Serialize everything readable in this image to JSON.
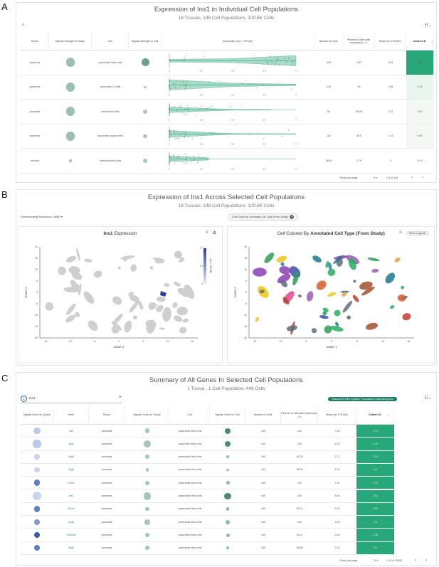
{
  "panelA": {
    "label": "A",
    "title": "Expression of Ins1 in Individual Cell Populations",
    "subtitle": "18 Tissues, 148 Cell Populations, 100.6K Cells",
    "headers": [
      "Tissue",
      "Signals Strength to Tissue",
      "Cell",
      "Signals Strength to Cell",
      "Expression: ln(1 + CP10K)",
      "Number of Cells",
      "Percent of cells with expression > 0",
      "Mean ln(1+CP10K)",
      "Cohen's D"
    ],
    "sort_arrow": "↓",
    "axis_ticks": [
      "0",
      "1.9",
      "3.9",
      "5.8",
      "7.7"
    ],
    "rows": [
      {
        "tissue": "pancreas",
        "cell": "pancreatic beta cells",
        "n": "449",
        "pct": "100",
        "mean": "6.54",
        "d": "2.52",
        "tissue_sig": 0.8,
        "cell_sig": 0.75,
        "violin_lo": 0.0,
        "violin_hi": 1.0,
        "dens": [
          0.25,
          0.35,
          0.9
        ],
        "color": "#27a77a",
        "pct_val": 100
      },
      {
        "tissue": "pancreas",
        "cell": "pancreatic D cells",
        "n": "140",
        "pct": "95",
        "mean": "0.98",
        "d": "0.22",
        "tissue_sig": 0.8,
        "cell_sig": 0.12,
        "violin_lo": 0.0,
        "violin_hi": 1.0,
        "dens": [
          0.9,
          0.3,
          0.1
        ],
        "color": "#e8f4ee",
        "pct_val": 95
      },
      {
        "tissue": "pancreas",
        "cell": "endothelial cells",
        "n": "66",
        "pct": "56.06",
        "mean": "0.21",
        "d": "0.07",
        "tissue_sig": 0.8,
        "cell_sig": 0.3,
        "violin_lo": 0.0,
        "violin_hi": 0.8,
        "dens": [
          0.5,
          0.05,
          0.02
        ],
        "color": "#f3f8f5",
        "pct_val": 56.06
      },
      {
        "tissue": "pancreas",
        "cell": "pancreatic acinar cells",
        "n": "152",
        "pct": "48.9",
        "mean": "0.13",
        "d": "0.06",
        "tissue_sig": 0.8,
        "cell_sig": 0.28,
        "violin_lo": 0.0,
        "violin_hi": 1.0,
        "dens": [
          0.6,
          0.05,
          0.02
        ],
        "color": "#f3f8f5",
        "pct_val": 48.9
      },
      {
        "tissue": "trachea",
        "cell": "mesenchymal cells",
        "n": "5678",
        "pct": "2.79",
        "mean": "0",
        "d": "-0.02",
        "tissue_sig": 0.12,
        "cell_sig": 0.3,
        "violin_lo": 0.0,
        "violin_hi": 0.3,
        "dens": [
          0.5,
          0.03,
          0.01
        ],
        "color": "#ffffff",
        "pct_val": 2.79
      }
    ],
    "footer": {
      "rows_label": "Rows per page:",
      "rows_value": "5",
      "range": "1-5 of 148"
    }
  },
  "panelB": {
    "label": "B",
    "title": "Expression of Ins1 Across Selected Cell Populations",
    "subtitle": "18 Tissues, 148 Cell Populations, 100.6K Cells",
    "dimred_label": "Dimensionality Reduction: UMAP",
    "color_chip": "Color Cells By: Annotated Cell Type (From Study)",
    "left_plot_title_gene": "Ins1",
    "left_plot_title_rest": " Expression",
    "right_plot_title_pre": "Cell Colored By ",
    "right_plot_title_bold": "Annotated Cell Type (From Study)",
    "show_legends": "Show Legends",
    "xlabel": "UMAP-1",
    "ylabel": "UMAP-2",
    "colorbar_label": "ln(1 + CP10K)",
    "colorbar_ticks": [
      "7.7",
      "3.9",
      "0"
    ],
    "x_ticks": [
      "-15",
      "-10",
      "-5",
      "0",
      "5",
      "10",
      "15"
    ],
    "y_ticks": [
      "20",
      "15",
      "10",
      "5",
      "0",
      "-5",
      "-10",
      "-15",
      "-20"
    ]
  },
  "panelC": {
    "label": "C",
    "title": "Summary of All Genes In Selected Cell Populations",
    "subtitle": "1 Tissue , 1 Cell Population, 449 Cells",
    "search_value": "Ins1",
    "filter_chip": "Tissue/Cell Filter Applied: Populations Expressing Ins1",
    "headers": [
      "Signals Gene vs. Query",
      "Gene",
      "Tissue",
      "Signals Gene vs. Tissue",
      "Cell",
      "Signals Gene vs. Cell",
      "Number of Cells",
      "Percent of cells with expression > 0",
      "Mean ln(1+CP10K)",
      "Cohen's D"
    ],
    "sort_arrow": "↓",
    "rows": [
      {
        "gene": "Ins2",
        "tissue": "pancreas",
        "cell": "pancreatic beta cells",
        "n": "449",
        "pct": "100",
        "mean": "7.32",
        "d": "4.74",
        "q": 0.45,
        "qc": "#b9cbe6",
        "t": 0.3,
        "c": 0.5
      },
      {
        "gene": "Iapp",
        "tissue": "pancreas",
        "cell": "pancreatic beta cells",
        "n": "449",
        "pct": "100",
        "mean": "6.02",
        "d": "3.75",
        "q": 0.6,
        "qc": "#b9cbe6",
        "t": 0.55,
        "c": 0.5
      },
      {
        "gene": "Scg5",
        "tissue": "pancreas",
        "cell": "pancreatic beta cells",
        "n": "449",
        "pct": "95.78",
        "mean": "2.71",
        "d": "3.21",
        "q": 0.35,
        "qc": "#c7d5ec",
        "t": 0.28,
        "c": 0.18
      },
      {
        "gene": "Scg2",
        "tissue": "pancreas",
        "cell": "pancreatic beta cells",
        "n": "449",
        "pct": "95.78",
        "mean": "4.31",
        "d": "3.2",
        "q": 0.3,
        "qc": "#c7d5ec",
        "t": 0.15,
        "c": 0.1
      },
      {
        "gene": "Pcsk2",
        "tissue": "pancreas",
        "cell": "pancreatic beta cells",
        "n": "449",
        "pct": "100",
        "mean": "2.92",
        "d": "2.73",
        "q": 0.4,
        "qc": "#5d7fc4",
        "t": 0.3,
        "c": 0.25
      },
      {
        "gene": "Ins1",
        "tissue": "pancreas",
        "cell": "pancreatic beta cells",
        "n": "449",
        "pct": "100",
        "mean": "6.54",
        "d": "2.52",
        "q": 0.7,
        "qc": "#c7d5ec",
        "t": 0.65,
        "c": 0.6
      },
      {
        "gene": "G6pc2",
        "tissue": "pancreas",
        "cell": "pancreatic beta cells",
        "n": "449",
        "pct": "93.11",
        "mean": "3.43",
        "d": "2.51",
        "q": 0.4,
        "qc": "#5d7fc4",
        "t": 0.22,
        "c": 0.22
      },
      {
        "gene": "Chga",
        "tissue": "pancreas",
        "cell": "pancreatic beta cells",
        "n": "449",
        "pct": "100",
        "mean": "5.23",
        "d": "2.5",
        "q": 0.35,
        "qc": "#7e9ad0",
        "t": 0.45,
        "c": 0.35
      },
      {
        "gene": "Slc30a8",
        "tissue": "pancreas",
        "cell": "pancreatic beta cells",
        "n": "449",
        "pct": "93.11",
        "mean": "2.63",
        "d": "2.48",
        "q": 0.4,
        "qc": "#3b5ba8",
        "t": 0.3,
        "c": 0.25
      },
      {
        "gene": "Scg3",
        "tissue": "pancreas",
        "cell": "pancreatic beta cells",
        "n": "449",
        "pct": "98.66",
        "mean": "2.04",
        "d": "2.4",
        "q": 0.32,
        "qc": "#5d7fc4",
        "t": 0.25,
        "c": 0.15
      }
    ],
    "footer": {
      "rows_label": "Rows per page:",
      "rows_value": "10",
      "range": "1-10 of 23062"
    }
  },
  "colors": {
    "accent_green": "#27a77a",
    "signal_circle": "#9dbfb0",
    "link_green": "#2f8e6d",
    "cluster_gray": "#cfcfcf"
  },
  "icons": [
    "search-icon",
    "filter-settings-icon",
    "chevron-down-icon",
    "menu-icon",
    "gear-icon",
    "chevron-left-icon",
    "chevron-right-icon",
    "close-icon"
  ]
}
